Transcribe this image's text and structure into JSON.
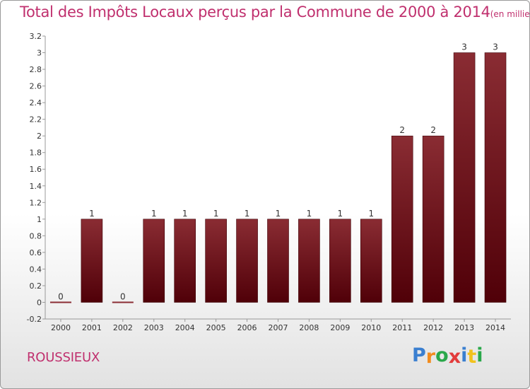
{
  "chart_data": {
    "type": "bar",
    "title": "Total des Impôts Locaux perçus par la Commune de 2000 à 2014",
    "title_unit": "(en milliers d'€)",
    "xlabel": "",
    "ylabel": "",
    "categories": [
      "2000",
      "2001",
      "2002",
      "2003",
      "2004",
      "2005",
      "2006",
      "2007",
      "2008",
      "2009",
      "2010",
      "2011",
      "2012",
      "2013",
      "2014"
    ],
    "values": [
      0,
      1,
      0,
      1,
      1,
      1,
      1,
      1,
      1,
      1,
      1,
      2,
      2,
      3,
      3
    ],
    "data_labels": [
      "0",
      "1",
      "0",
      "1",
      "1",
      "1",
      "1",
      "1",
      "1",
      "1",
      "1",
      "2",
      "2",
      "3",
      "3"
    ],
    "ylim": [
      -0.2,
      3.2
    ],
    "yticks": [
      "-0.2",
      "0",
      "0.2",
      "0.4",
      "0.6",
      "0.8",
      "1",
      "1.2",
      "1.4",
      "1.6",
      "1.8",
      "2",
      "2.2",
      "2.4",
      "2.6",
      "2.8",
      "3",
      "3.2"
    ],
    "bar_color": "#7a1a20",
    "grid": false,
    "legend": "none"
  },
  "commune_name": "ROUSSIEUX",
  "logo": {
    "letters": [
      "P",
      "r",
      "o",
      "x",
      "i",
      "t",
      "i"
    ],
    "colors": [
      "#3a7fd0",
      "#f28c1e",
      "#2aa84a",
      "#e23b3b",
      "#3a7fd0",
      "#f2c21e",
      "#2aa84a"
    ]
  }
}
